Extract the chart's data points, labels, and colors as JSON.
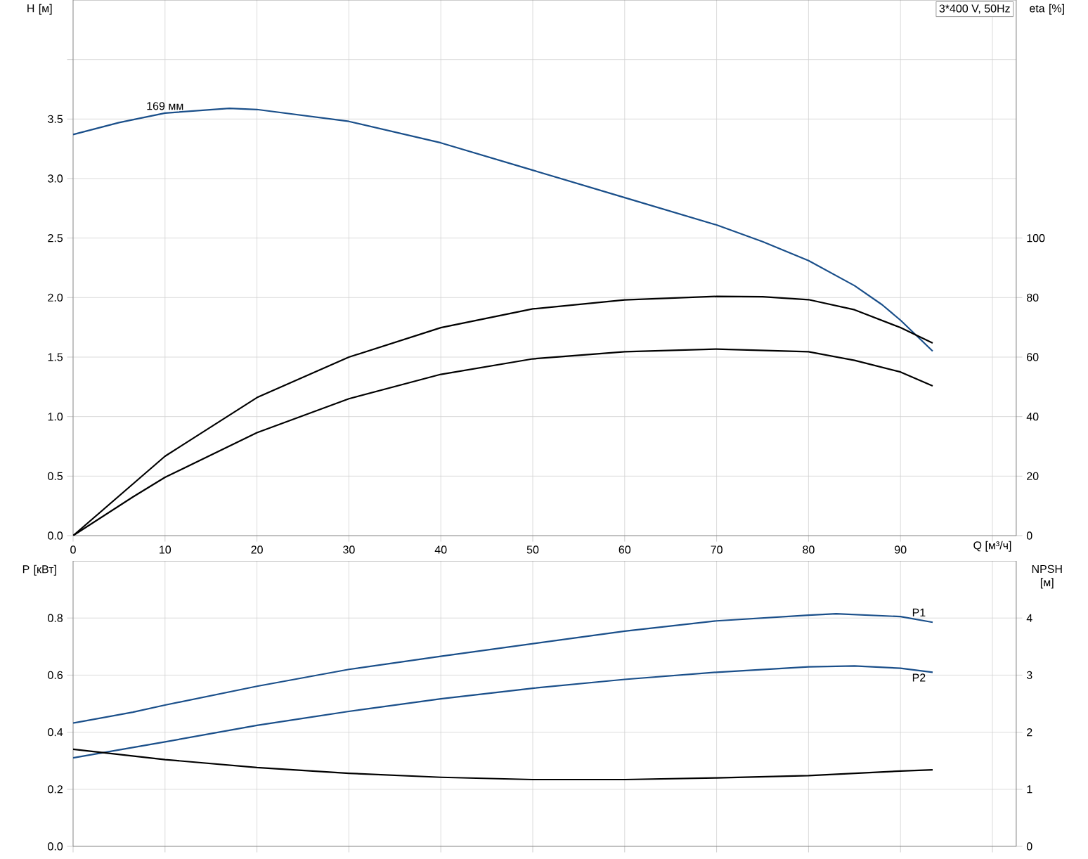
{
  "chart_data": [
    {
      "type": "line",
      "title": "3*400 V, 50Hz",
      "xlabel": "Q [м³/ч]",
      "ylabel": "H [м]",
      "y2label": "eta [%]",
      "x": [
        0,
        5,
        10,
        17,
        20,
        30,
        40,
        50,
        60,
        70,
        75,
        80,
        85,
        88,
        90,
        93.5
      ],
      "xlim": [
        0,
        102.6
      ],
      "xticks": [
        0,
        10,
        20,
        30,
        40,
        50,
        60,
        70,
        80,
        90,
        {
          "value": 100,
          "label": null
        }
      ],
      "ylim": [
        0,
        4.5
      ],
      "yticks": [
        {
          "value": 0,
          "label": "0.0"
        },
        0.5,
        {
          "value": 1,
          "label": "1.0"
        },
        1.5,
        {
          "value": 2,
          "label": "2.0"
        },
        2.5,
        {
          "value": 3,
          "label": "3.0"
        },
        3.5,
        {
          "value": 4,
          "label": null
        }
      ],
      "y2lim": [
        0,
        180
      ],
      "y2ticks": [
        0,
        20,
        40,
        60,
        80,
        100
      ],
      "series": [
        {
          "name": "169 мм",
          "color": "#1a4f8a",
          "values": [
            3.37,
            3.47,
            3.55,
            3.59,
            3.58,
            3.48,
            3.3,
            3.07,
            2.84,
            2.61,
            2.47,
            2.31,
            2.1,
            1.94,
            1.81,
            1.55
          ]
        },
        {
          "color": "#000000",
          "axis": "y2",
          "x": [
            0,
            10,
            20,
            30,
            40,
            50,
            60,
            70,
            75,
            80,
            85,
            90,
            93.5
          ],
          "values": [
            0,
            26.7,
            46.4,
            60.0,
            69.9,
            76.2,
            79.2,
            80.4,
            80.3,
            79.3,
            75.9,
            69.9,
            64.7
          ]
        },
        {
          "color": "#000000",
          "axis": "y2",
          "x": [
            0,
            6.5,
            10,
            20,
            30,
            40,
            50,
            60,
            70,
            80,
            85,
            90,
            93.5
          ],
          "values": [
            0,
            13.0,
            19.6,
            34.6,
            46.0,
            54.2,
            59.4,
            61.8,
            62.7,
            61.8,
            58.9,
            55.0,
            50.3
          ]
        }
      ],
      "grid": true,
      "marker": "none",
      "line_style": "solid"
    },
    {
      "type": "line",
      "ylabel": "P [кВт]",
      "y2label": "NPSH [м]",
      "x": [
        0,
        6.5,
        10,
        20,
        30,
        40,
        50,
        60,
        70,
        80,
        83,
        90,
        93.5
      ],
      "xlim": [
        0,
        102.6
      ],
      "xticks": [
        0,
        10,
        20,
        30,
        40,
        50,
        60,
        70,
        80,
        90,
        100
      ],
      "ylim": [
        0,
        1.0
      ],
      "yticks": [
        {
          "value": 0,
          "label": "0.0"
        },
        0.2,
        0.4,
        0.6,
        0.8
      ],
      "y2lim": [
        0,
        5
      ],
      "y2ticks": [
        0,
        1,
        2,
        3,
        4
      ],
      "series": [
        {
          "color": "#1a4f8a",
          "values": [
            0.432,
            0.47,
            0.495,
            0.561,
            0.62,
            0.666,
            0.71,
            0.754,
            0.79,
            0.81,
            0.815,
            0.805,
            0.785
          ]
        },
        {
          "color": "#1a4f8a",
          "x": [
            0,
            10,
            20,
            30,
            40,
            50,
            60,
            70,
            80,
            85,
            90,
            93.5
          ],
          "values": [
            0.31,
            0.366,
            0.424,
            0.473,
            0.517,
            0.554,
            0.585,
            0.61,
            0.629,
            0.632,
            0.624,
            0.61
          ]
        },
        {
          "color": "#000000",
          "axis": "y2",
          "x": [
            0,
            10,
            20,
            30,
            40,
            50,
            60,
            70,
            80,
            90,
            93.5
          ],
          "values": [
            1.7,
            1.52,
            1.38,
            1.28,
            1.21,
            1.17,
            1.17,
            1.2,
            1.24,
            1.32,
            1.34
          ]
        }
      ],
      "annotations": [
        {
          "text": "P1",
          "x": 92,
          "y": 0.795
        },
        {
          "text": "P2",
          "x": 92,
          "y": 0.616
        }
      ],
      "tick_labels": "y",
      "grid": true,
      "marker": "none",
      "line_style": "solid"
    }
  ]
}
